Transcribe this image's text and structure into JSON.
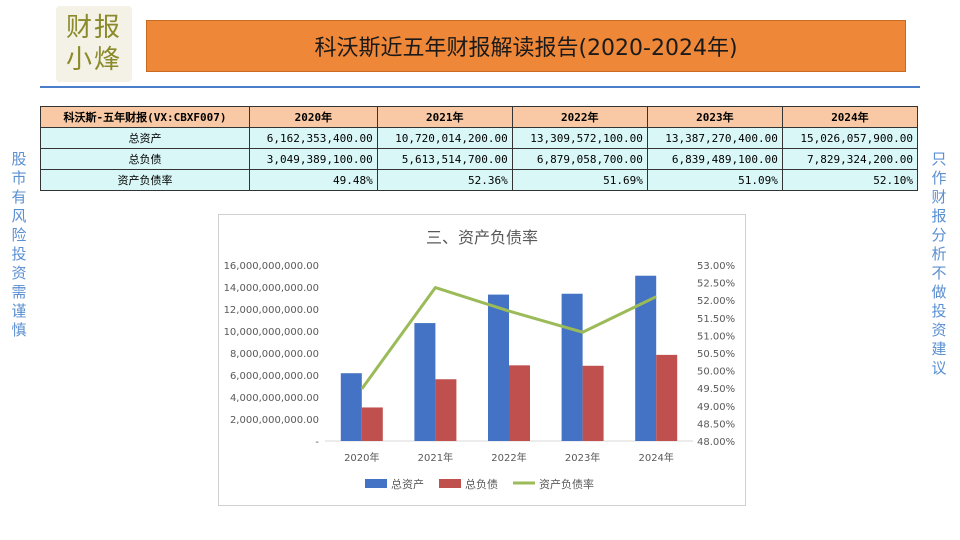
{
  "logo": {
    "line1": "财报",
    "line2": "小烽"
  },
  "header": {
    "title": "科沃斯近五年财报解读报告(2020-2024年)"
  },
  "side": {
    "left": "股市有风险 投资需谨慎",
    "right": "只作财报分析 不做投资建议"
  },
  "table": {
    "header_label": "科沃斯-五年财报(VX:CBXF007)",
    "years": [
      "2020年",
      "2021年",
      "2022年",
      "2023年",
      "2024年"
    ],
    "rows": [
      {
        "label": "总资产",
        "values": [
          "6,162,353,400.00",
          "10,720,014,200.00",
          "13,309,572,100.00",
          "13,387,270,400.00",
          "15,026,057,900.00"
        ]
      },
      {
        "label": "总负债",
        "values": [
          "3,049,389,100.00",
          "5,613,514,700.00",
          "6,879,058,700.00",
          "6,839,489,100.00",
          "7,829,324,200.00"
        ]
      },
      {
        "label": "资产负债率",
        "values": [
          "49.48%",
          "52.36%",
          "51.69%",
          "51.09%",
          "52.10%"
        ]
      }
    ]
  },
  "chart_data": {
    "type": "bar",
    "title": "三、资产负债率",
    "categories": [
      "2020年",
      "2021年",
      "2022年",
      "2023年",
      "2024年"
    ],
    "series": [
      {
        "name": "总资产",
        "type": "bar",
        "axis": "left",
        "color": "#4472c4",
        "values": [
          6162353400.0,
          10720014200.0,
          13309572100.0,
          13387270400.0,
          15026057900.0
        ]
      },
      {
        "name": "总负债",
        "type": "bar",
        "axis": "left",
        "color": "#c0504d",
        "values": [
          3049389100.0,
          5613514700.0,
          6879058700.0,
          6839489100.0,
          7829324200.0
        ]
      },
      {
        "name": "资产负债率",
        "type": "line",
        "axis": "right",
        "color": "#9bbb59",
        "values": [
          49.48,
          52.36,
          51.69,
          51.09,
          52.1
        ]
      }
    ],
    "y_left": {
      "min": 0,
      "max": 16000000000,
      "step": 2000000000,
      "tick_labels": [
        "-",
        "2,000,000,000.00",
        "4,000,000,000.00",
        "6,000,000,000.00",
        "8,000,000,000.00",
        "10,000,000,000.00",
        "12,000,000,000.00",
        "14,000,000,000.00",
        "16,000,000,000.00"
      ]
    },
    "y_right": {
      "min": 48.0,
      "max": 53.0,
      "step": 0.5,
      "tick_labels": [
        "48.00%",
        "48.50%",
        "49.00%",
        "49.50%",
        "50.00%",
        "50.50%",
        "51.00%",
        "51.50%",
        "52.00%",
        "52.50%",
        "53.00%"
      ]
    },
    "legend": "bottom"
  }
}
